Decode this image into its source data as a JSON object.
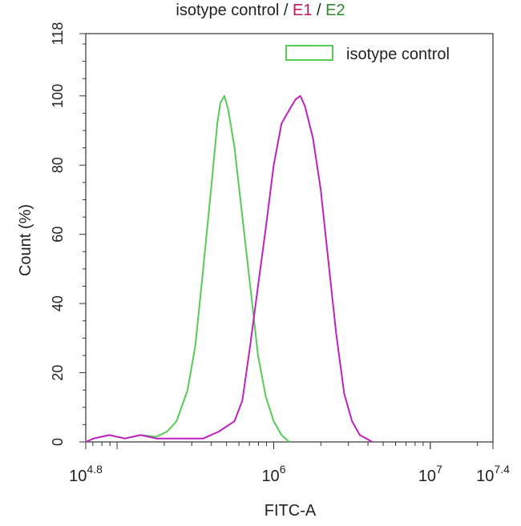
{
  "chart_data": {
    "type": "line",
    "title_parts": [
      {
        "text": "isotype control",
        "color": "#222222"
      },
      {
        "text": " / ",
        "color": "#222222"
      },
      {
        "text": "E1",
        "color": "#c0185c"
      },
      {
        "text": " / ",
        "color": "#222222"
      },
      {
        "text": "E2",
        "color": "#2e8b2e"
      }
    ],
    "xlabel": "FITC-A",
    "ylabel": "Count (%)",
    "xscale": "log10",
    "xlim": [
      4.8,
      7.4
    ],
    "ylim": [
      0,
      118
    ],
    "x_ticks": [
      {
        "value": 4.8,
        "base": "10",
        "exp": "4.8"
      },
      {
        "value": 6.0,
        "base": "10",
        "exp": "6"
      },
      {
        "value": 7.0,
        "base": "10",
        "exp": "7"
      },
      {
        "value": 7.4,
        "base": "10",
        "exp": "7.4"
      }
    ],
    "y_ticks": [
      0,
      20,
      40,
      60,
      80,
      100,
      118
    ],
    "legend": {
      "position": "top-right",
      "entries": [
        {
          "label": "isotype control",
          "color": "#55cc55"
        }
      ]
    },
    "series": [
      {
        "name": "isotype control",
        "color": "#55cc55",
        "points": [
          [
            4.8,
            0
          ],
          [
            4.85,
            1
          ],
          [
            4.95,
            2
          ],
          [
            5.05,
            1
          ],
          [
            5.15,
            2
          ],
          [
            5.25,
            1.5
          ],
          [
            5.32,
            3
          ],
          [
            5.38,
            6
          ],
          [
            5.45,
            15
          ],
          [
            5.5,
            28
          ],
          [
            5.55,
            50
          ],
          [
            5.6,
            73
          ],
          [
            5.64,
            92
          ],
          [
            5.66,
            98
          ],
          [
            5.685,
            100
          ],
          [
            5.71,
            96
          ],
          [
            5.75,
            85
          ],
          [
            5.8,
            65
          ],
          [
            5.85,
            45
          ],
          [
            5.9,
            25
          ],
          [
            5.95,
            13
          ],
          [
            6.0,
            6
          ],
          [
            6.05,
            2
          ],
          [
            6.1,
            0
          ]
        ]
      },
      {
        "name": "E1",
        "color": "#c020c0",
        "points": [
          [
            4.8,
            0
          ],
          [
            4.85,
            1
          ],
          [
            4.95,
            2
          ],
          [
            5.05,
            1
          ],
          [
            5.15,
            2
          ],
          [
            5.25,
            1
          ],
          [
            5.35,
            1
          ],
          [
            5.45,
            1
          ],
          [
            5.55,
            1
          ],
          [
            5.65,
            3
          ],
          [
            5.75,
            6
          ],
          [
            5.8,
            12
          ],
          [
            5.85,
            28
          ],
          [
            5.9,
            45
          ],
          [
            5.95,
            62
          ],
          [
            6.0,
            80
          ],
          [
            6.05,
            92
          ],
          [
            6.1,
            96
          ],
          [
            6.14,
            99
          ],
          [
            6.17,
            100
          ],
          [
            6.2,
            97
          ],
          [
            6.25,
            88
          ],
          [
            6.3,
            73
          ],
          [
            6.35,
            52
          ],
          [
            6.4,
            31
          ],
          [
            6.45,
            14
          ],
          [
            6.5,
            6
          ],
          [
            6.55,
            2
          ],
          [
            6.63,
            0
          ]
        ]
      }
    ]
  }
}
